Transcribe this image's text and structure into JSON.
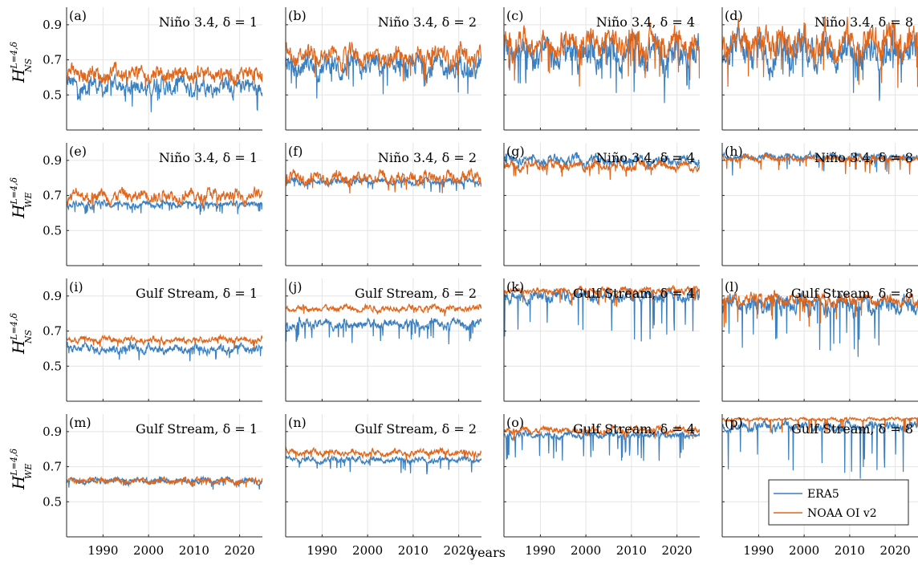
{
  "chart_data": {
    "type": "line",
    "xlabel": "years",
    "x_ticks": [
      "1990",
      "2000",
      "2010",
      "2020"
    ],
    "x_tick_values": [
      1990,
      2000,
      2010,
      2020
    ],
    "y_ticks": [
      "0.5",
      "0.7",
      "0.9"
    ],
    "y_tick_values": [
      0.5,
      0.7,
      0.9
    ],
    "xlim": [
      1982,
      2025
    ],
    "ylim": [
      0.3,
      1.0
    ],
    "grid": true,
    "legend": {
      "placement": "bottom-right of panel (p)",
      "entries": [
        "ERA5",
        "NOAA OI v2"
      ]
    },
    "colors": {
      "ERA5": "#3a7fc0",
      "NOAA OI v2": "#e0661c"
    },
    "row_ylabels": [
      {
        "base": "H",
        "sub": "NS",
        "sup": "L=4,δ"
      },
      {
        "base": "H",
        "sub": "WE",
        "sup": "L=4,δ"
      },
      {
        "base": "H",
        "sub": "NS",
        "sup": "L=4,δ"
      },
      {
        "base": "H",
        "sub": "WE",
        "sup": "L=4,δ"
      }
    ],
    "panels": [
      {
        "letter": "(a)",
        "title": "Niño 3.4, δ = 1",
        "series": [
          {
            "name": "ERA5",
            "mean": 0.55,
            "amp": 0.06,
            "dip": 0.1
          },
          {
            "name": "NOAA OI v2",
            "mean": 0.62,
            "amp": 0.05,
            "dip": 0.08
          }
        ]
      },
      {
        "letter": "(b)",
        "title": "Niño 3.4, δ = 2",
        "series": [
          {
            "name": "ERA5",
            "mean": 0.66,
            "amp": 0.07,
            "dip": 0.15
          },
          {
            "name": "NOAA OI v2",
            "mean": 0.72,
            "amp": 0.06,
            "dip": 0.14
          }
        ]
      },
      {
        "letter": "(c)",
        "title": "Niño 3.4, δ = 4",
        "series": [
          {
            "name": "ERA5",
            "mean": 0.74,
            "amp": 0.1,
            "dip": 0.2
          },
          {
            "name": "NOAA OI v2",
            "mean": 0.8,
            "amp": 0.08,
            "dip": 0.2
          }
        ]
      },
      {
        "letter": "(d)",
        "title": "Niño 3.4, δ = 8",
        "series": [
          {
            "name": "ERA5",
            "mean": 0.75,
            "amp": 0.11,
            "dip": 0.2
          },
          {
            "name": "NOAA OI v2",
            "mean": 0.8,
            "amp": 0.1,
            "dip": 0.25
          }
        ]
      },
      {
        "letter": "(e)",
        "title": "Niño 3.4, δ = 1",
        "series": [
          {
            "name": "ERA5",
            "mean": 0.65,
            "amp": 0.02,
            "dip": 0.05
          },
          {
            "name": "NOAA OI v2",
            "mean": 0.7,
            "amp": 0.04,
            "dip": 0.08
          }
        ]
      },
      {
        "letter": "(f)",
        "title": "Niño 3.4, δ = 2",
        "series": [
          {
            "name": "ERA5",
            "mean": 0.78,
            "amp": 0.02,
            "dip": 0.05
          },
          {
            "name": "NOAA OI v2",
            "mean": 0.8,
            "amp": 0.04,
            "dip": 0.06
          }
        ]
      },
      {
        "letter": "(g)",
        "title": "Niño 3.4, δ = 4",
        "series": [
          {
            "name": "ERA5",
            "mean": 0.9,
            "amp": 0.03,
            "dip": 0.05
          },
          {
            "name": "NOAA OI v2",
            "mean": 0.87,
            "amp": 0.03,
            "dip": 0.06
          }
        ]
      },
      {
        "letter": "(h)",
        "title": "Niño 3.4, δ = 8",
        "series": [
          {
            "name": "ERA5",
            "mean": 0.92,
            "amp": 0.02,
            "dip": 0.1
          },
          {
            "name": "NOAA OI v2",
            "mean": 0.91,
            "amp": 0.02,
            "dip": 0.08
          }
        ]
      },
      {
        "letter": "(i)",
        "title": "Gulf Stream, δ = 1",
        "series": [
          {
            "name": "ERA5",
            "mean": 0.6,
            "amp": 0.03,
            "dip": 0.06
          },
          {
            "name": "NOAA OI v2",
            "mean": 0.65,
            "amp": 0.02,
            "dip": 0.04
          }
        ]
      },
      {
        "letter": "(j)",
        "title": "Gulf Stream, δ = 2",
        "series": [
          {
            "name": "ERA5",
            "mean": 0.74,
            "amp": 0.03,
            "dip": 0.1
          },
          {
            "name": "NOAA OI v2",
            "mean": 0.83,
            "amp": 0.02,
            "dip": 0.04
          }
        ]
      },
      {
        "letter": "(k)",
        "title": "Gulf Stream, δ = 4",
        "series": [
          {
            "name": "ERA5",
            "mean": 0.9,
            "amp": 0.04,
            "dip": 0.25
          },
          {
            "name": "NOAA OI v2",
            "mean": 0.93,
            "amp": 0.02,
            "dip": 0.08
          }
        ]
      },
      {
        "letter": "(l)",
        "title": "Gulf Stream, δ = 8",
        "series": [
          {
            "name": "ERA5",
            "mean": 0.85,
            "amp": 0.06,
            "dip": 0.3
          },
          {
            "name": "NOAA OI v2",
            "mean": 0.88,
            "amp": 0.04,
            "dip": 0.15
          }
        ]
      },
      {
        "letter": "(m)",
        "title": "Gulf Stream, δ = 1",
        "series": [
          {
            "name": "ERA5",
            "mean": 0.62,
            "amp": 0.02,
            "dip": 0.04
          },
          {
            "name": "NOAA OI v2",
            "mean": 0.62,
            "amp": 0.02,
            "dip": 0.03
          }
        ]
      },
      {
        "letter": "(n)",
        "title": "Gulf Stream, δ = 2",
        "series": [
          {
            "name": "ERA5",
            "mean": 0.74,
            "amp": 0.02,
            "dip": 0.08
          },
          {
            "name": "NOAA OI v2",
            "mean": 0.78,
            "amp": 0.02,
            "dip": 0.04
          }
        ]
      },
      {
        "letter": "(o)",
        "title": "Gulf Stream, δ = 4",
        "series": [
          {
            "name": "ERA5",
            "mean": 0.88,
            "amp": 0.02,
            "dip": 0.15
          },
          {
            "name": "NOAA OI v2",
            "mean": 0.91,
            "amp": 0.02,
            "dip": 0.06
          }
        ]
      },
      {
        "letter": "(p)",
        "title": "Gulf Stream, δ = 8",
        "series": [
          {
            "name": "ERA5",
            "mean": 0.93,
            "amp": 0.03,
            "dip": 0.28
          },
          {
            "name": "NOAA OI v2",
            "mean": 0.97,
            "amp": 0.01,
            "dip": 0.08
          }
        ]
      }
    ]
  }
}
